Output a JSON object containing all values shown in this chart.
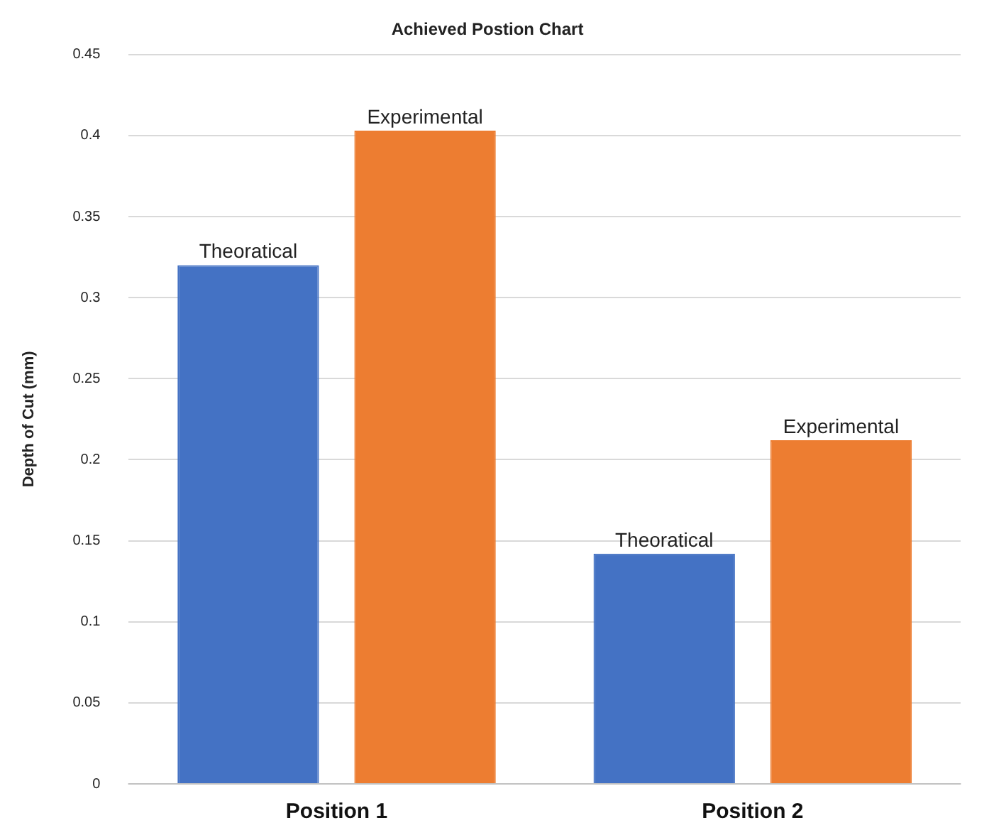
{
  "chart_data": {
    "type": "bar",
    "title": "Achieved Postion Chart",
    "ylabel": "Depth of Cut (mm)",
    "categories": [
      "Position 1",
      "Position 2"
    ],
    "series": [
      {
        "name": "Theoratical",
        "color": "#4472c4",
        "values": [
          0.32,
          0.142
        ]
      },
      {
        "name": "Experimental",
        "color": "#ed7d31",
        "values": [
          0.403,
          0.212
        ]
      }
    ],
    "ylim": [
      0,
      0.45
    ],
    "yticks": [
      0,
      0.05,
      0.1,
      0.15,
      0.2,
      0.25,
      0.3,
      0.35,
      0.4,
      0.45
    ],
    "grid": "y",
    "legend": false
  }
}
